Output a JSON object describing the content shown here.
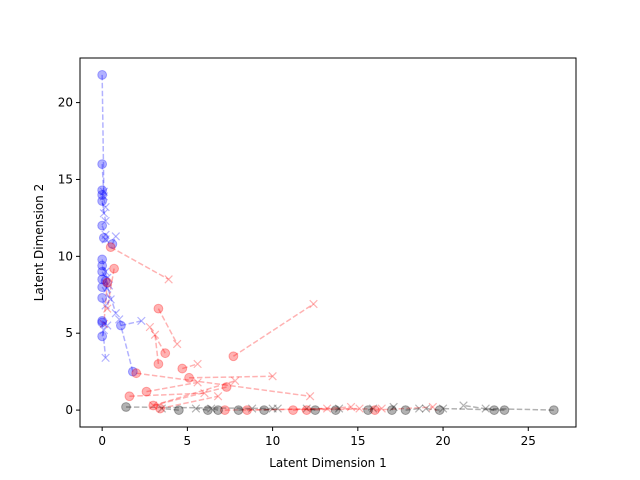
{
  "chart_data": {
    "type": "scatter",
    "xlabel": "Latent Dimension 1",
    "ylabel": "Latent Dimension 2",
    "xlim": [
      -1.3,
      27.8
    ],
    "ylim": [
      -1.1,
      22.9
    ],
    "xticks": [
      0,
      5,
      10,
      15,
      20,
      25
    ],
    "yticks": [
      0,
      5,
      10,
      15,
      20
    ],
    "grid": false,
    "legend": "none",
    "colors": {
      "blue": "#0000ff",
      "red": "#ff0000",
      "black": "#000000"
    },
    "pairs": [
      {
        "color": "blue",
        "circle": [
          0.0,
          21.8
        ],
        "cross": [
          0.1,
          14.2
        ]
      },
      {
        "color": "blue",
        "circle": [
          0.0,
          16.0
        ],
        "cross": [
          0.1,
          13.9
        ]
      },
      {
        "color": "blue",
        "circle": [
          0.0,
          14.3
        ],
        "cross": [
          0.2,
          13.2
        ]
      },
      {
        "color": "blue",
        "circle": [
          0.0,
          14.0
        ],
        "cross": [
          0.1,
          12.8
        ]
      },
      {
        "color": "blue",
        "circle": [
          0.0,
          13.6
        ],
        "cross": [
          0.2,
          12.3
        ]
      },
      {
        "color": "blue",
        "circle": [
          0.0,
          12.0
        ],
        "cross": [
          0.2,
          11.4
        ]
      },
      {
        "color": "blue",
        "circle": [
          0.1,
          11.2
        ],
        "cross": [
          0.2,
          11.1
        ]
      },
      {
        "color": "blue",
        "circle": [
          0.0,
          9.8
        ],
        "cross": [
          0.2,
          9.0
        ]
      },
      {
        "color": "blue",
        "circle": [
          0.0,
          9.4
        ],
        "cross": [
          0.3,
          8.6
        ]
      },
      {
        "color": "blue",
        "circle": [
          0.0,
          9.0
        ],
        "cross": [
          0.4,
          8.1
        ]
      },
      {
        "color": "blue",
        "circle": [
          0.0,
          8.5
        ],
        "cross": [
          0.3,
          7.9
        ]
      },
      {
        "color": "blue",
        "circle": [
          0.0,
          8.0
        ],
        "cross": [
          0.5,
          7.2
        ]
      },
      {
        "color": "blue",
        "circle": [
          0.0,
          7.3
        ],
        "cross": [
          0.2,
          6.8
        ]
      },
      {
        "color": "blue",
        "circle": [
          0.0,
          5.8
        ],
        "cross": [
          0.3,
          5.5
        ]
      },
      {
        "color": "blue",
        "circle": [
          0.0,
          5.7
        ],
        "cross": [
          0.2,
          3.4
        ]
      },
      {
        "color": "blue",
        "circle": [
          0.0,
          4.8
        ],
        "cross": [
          0.1,
          5.2
        ]
      },
      {
        "color": "blue",
        "circle": [
          0.2,
          8.4
        ],
        "cross": [
          0.8,
          6.3
        ]
      },
      {
        "color": "blue",
        "circle": [
          0.6,
          10.8
        ],
        "cross": [
          0.8,
          11.3
        ]
      },
      {
        "color": "blue",
        "circle": [
          1.1,
          5.5
        ],
        "cross": [
          2.3,
          5.8
        ]
      },
      {
        "color": "blue",
        "circle": [
          1.8,
          2.5
        ],
        "cross": [
          1.0,
          5.9
        ]
      },
      {
        "color": "red",
        "circle": [
          0.5,
          10.6
        ],
        "cross": [
          3.9,
          8.5
        ]
      },
      {
        "color": "red",
        "circle": [
          0.7,
          9.2
        ],
        "cross": [
          0.3,
          6.6
        ]
      },
      {
        "color": "red",
        "circle": [
          0.3,
          8.3
        ],
        "cross": [
          0.1,
          5.6
        ]
      },
      {
        "color": "red",
        "circle": [
          3.3,
          6.6
        ],
        "cross": [
          4.4,
          4.3
        ]
      },
      {
        "color": "red",
        "circle": [
          7.7,
          3.5
        ],
        "cross": [
          12.4,
          6.9
        ]
      },
      {
        "color": "red",
        "circle": [
          3.7,
          3.7
        ],
        "cross": [
          2.8,
          5.4
        ]
      },
      {
        "color": "red",
        "circle": [
          3.3,
          3.0
        ],
        "cross": [
          3.1,
          4.9
        ]
      },
      {
        "color": "red",
        "circle": [
          4.7,
          2.7
        ],
        "cross": [
          5.6,
          3.0
        ]
      },
      {
        "color": "red",
        "circle": [
          5.1,
          2.1
        ],
        "cross": [
          10.0,
          2.2
        ]
      },
      {
        "color": "red",
        "circle": [
          2.0,
          2.4
        ],
        "cross": [
          12.2,
          0.9
        ]
      },
      {
        "color": "red",
        "circle": [
          7.3,
          1.5
        ],
        "cross": [
          3.0,
          0.3
        ]
      },
      {
        "color": "red",
        "circle": [
          2.6,
          1.2
        ],
        "cross": [
          5.6,
          1.8
        ]
      },
      {
        "color": "red",
        "circle": [
          1.6,
          0.9
        ],
        "cross": [
          6.0,
          1.1
        ]
      },
      {
        "color": "red",
        "circle": [
          3.0,
          0.3
        ],
        "cross": [
          7.8,
          1.9
        ]
      },
      {
        "color": "red",
        "circle": [
          3.4,
          0.1
        ],
        "cross": [
          6.8,
          0.9
        ]
      },
      {
        "color": "red",
        "circle": [
          7.2,
          0.0
        ],
        "cross": [
          15.1,
          0.1
        ]
      },
      {
        "color": "red",
        "circle": [
          8.5,
          0.0
        ],
        "cross": [
          13.2,
          0.1
        ]
      },
      {
        "color": "red",
        "circle": [
          11.2,
          0.0
        ],
        "cross": [
          14.6,
          0.2
        ]
      },
      {
        "color": "red",
        "circle": [
          12.0,
          0.0
        ],
        "cross": [
          16.4,
          0.1
        ]
      },
      {
        "color": "red",
        "circle": [
          16.0,
          0.0
        ],
        "cross": [
          19.4,
          0.2
        ]
      },
      {
        "color": "black",
        "circle": [
          1.4,
          0.2
        ],
        "cross": [
          10.0,
          0.1
        ]
      },
      {
        "color": "black",
        "circle": [
          4.5,
          0.0
        ],
        "cross": [
          3.5,
          0.1
        ]
      },
      {
        "color": "black",
        "circle": [
          6.2,
          0.0
        ],
        "cross": [
          5.5,
          0.1
        ]
      },
      {
        "color": "black",
        "circle": [
          6.8,
          0.0
        ],
        "cross": [
          6.4,
          0.1
        ]
      },
      {
        "color": "black",
        "circle": [
          8.0,
          0.0
        ],
        "cross": [
          8.8,
          0.1
        ]
      },
      {
        "color": "black",
        "circle": [
          9.5,
          0.0
        ],
        "cross": [
          10.3,
          0.1
        ]
      },
      {
        "color": "black",
        "circle": [
          12.5,
          0.0
        ],
        "cross": [
          12.0,
          0.1
        ]
      },
      {
        "color": "black",
        "circle": [
          13.7,
          0.0
        ],
        "cross": [
          13.9,
          0.1
        ]
      },
      {
        "color": "black",
        "circle": [
          15.6,
          0.0
        ],
        "cross": [
          15.9,
          0.1
        ]
      },
      {
        "color": "black",
        "circle": [
          17.0,
          0.0
        ],
        "cross": [
          17.1,
          0.2
        ]
      },
      {
        "color": "black",
        "circle": [
          17.8,
          0.0
        ],
        "cross": [
          18.6,
          0.1
        ]
      },
      {
        "color": "black",
        "circle": [
          19.8,
          0.0
        ],
        "cross": [
          19.0,
          0.1
        ]
      },
      {
        "color": "black",
        "circle": [
          23.0,
          0.0
        ],
        "cross": [
          21.2,
          0.3
        ]
      },
      {
        "color": "black",
        "circle": [
          23.6,
          0.0
        ],
        "cross": [
          20.0,
          0.1
        ]
      },
      {
        "color": "black",
        "circle": [
          26.5,
          0.0
        ],
        "cross": [
          22.5,
          0.1
        ]
      }
    ]
  }
}
